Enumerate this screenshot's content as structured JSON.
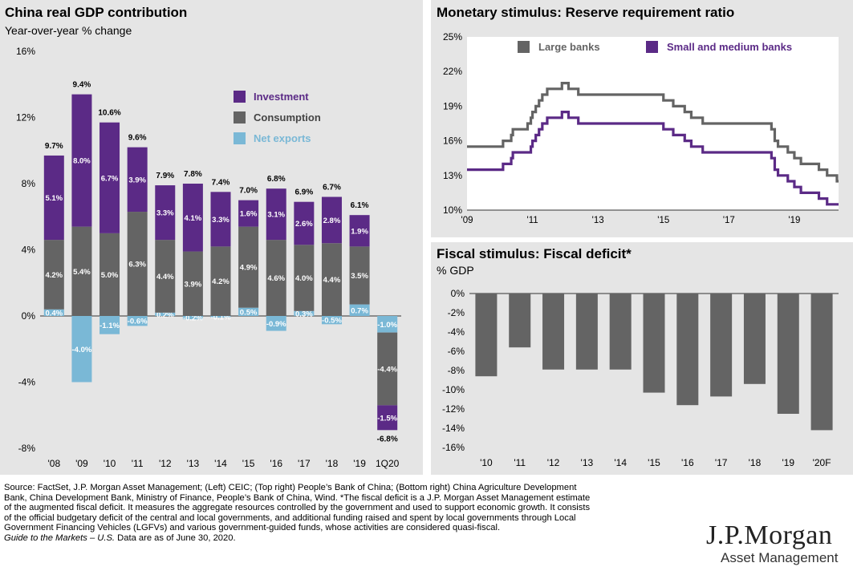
{
  "colors": {
    "investment": "#5b2a86",
    "consumption": "#646464",
    "net_exports": "#7ab8d6",
    "large_banks": "#646464",
    "small_banks": "#5b2a86",
    "deficit": "#646464",
    "panel_bg": "#e5e5e5"
  },
  "chart_data": [
    {
      "id": "gdp",
      "type": "bar",
      "stacked": true,
      "title": "China real GDP contribution",
      "subtitle": "Year-over-year % change",
      "ylim": [
        -8,
        16
      ],
      "yticks": [
        "16%",
        "12%",
        "8%",
        "4%",
        "0%",
        "-4%",
        "-8%"
      ],
      "categories": [
        "'08",
        "'09",
        "'10",
        "'11",
        "'12",
        "'13",
        "'14",
        "'15",
        "'16",
        "'17",
        "'18",
        "'19",
        "1Q20"
      ],
      "totals": [
        "9.7%",
        "9.4%",
        "10.6%",
        "9.6%",
        "7.9%",
        "7.8%",
        "7.4%",
        "7.0%",
        "6.8%",
        "6.9%",
        "6.7%",
        "6.1%",
        "-6.8%"
      ],
      "legend": [
        "Investment",
        "Consumption",
        "Net exports"
      ],
      "series": [
        {
          "name": "Net exports",
          "values": [
            0.4,
            -4.0,
            -1.1,
            -0.6,
            0.2,
            -0.2,
            -0.1,
            0.5,
            -0.9,
            0.3,
            -0.5,
            0.7,
            -1.0
          ],
          "labels": [
            "0.4%",
            "-4.0%",
            "-1.1%",
            "-0.6%",
            "0.2%",
            "-0.2%",
            "-0.1%",
            "0.5%",
            "-0.9%",
            "0.3%",
            "-0.5%",
            "0.7%",
            "-1.0%"
          ]
        },
        {
          "name": "Consumption",
          "values": [
            4.2,
            5.4,
            5.0,
            6.3,
            4.4,
            3.9,
            4.2,
            4.9,
            4.6,
            4.0,
            4.4,
            3.5,
            -4.4
          ],
          "labels": [
            "4.2%",
            "5.4%",
            "5.0%",
            "6.3%",
            "4.4%",
            "3.9%",
            "4.2%",
            "4.9%",
            "4.6%",
            "4.0%",
            "4.4%",
            "3.5%",
            "-4.4%"
          ]
        },
        {
          "name": "Investment",
          "values": [
            5.1,
            8.0,
            6.7,
            3.9,
            3.3,
            4.1,
            3.3,
            1.6,
            3.1,
            2.6,
            2.8,
            1.9,
            -1.5
          ],
          "labels": [
            "5.1%",
            "8.0%",
            "6.7%",
            "3.9%",
            "3.3%",
            "4.1%",
            "3.3%",
            "1.6%",
            "3.1%",
            "2.6%",
            "2.8%",
            "1.9%",
            "-1.5%"
          ]
        }
      ]
    },
    {
      "id": "rrr",
      "type": "line",
      "title": "Monetary stimulus: Reserve requirement ratio",
      "ylim": [
        10,
        25
      ],
      "yticks": [
        "25%",
        "22%",
        "19%",
        "16%",
        "13%",
        "10%"
      ],
      "xlim": [
        2009,
        2020.35
      ],
      "xticks": [
        {
          "v": 2009,
          "label": "'09"
        },
        {
          "v": 2011,
          "label": "'11"
        },
        {
          "v": 2013,
          "label": "'13"
        },
        {
          "v": 2015,
          "label": "'15"
        },
        {
          "v": 2017,
          "label": "'17"
        },
        {
          "v": 2019,
          "label": "'19"
        }
      ],
      "series": [
        {
          "name": "Large banks",
          "x": [
            2009.0,
            2010.0,
            2010.1,
            2010.35,
            2010.4,
            2010.85,
            2010.95,
            2011.0,
            2011.1,
            2011.2,
            2011.3,
            2011.45,
            2011.9,
            2012.1,
            2012.4,
            2015.0,
            2015.3,
            2015.65,
            2015.85,
            2016.2,
            2018.3,
            2018.4,
            2018.5,
            2018.8,
            2019.0,
            2019.2,
            2019.75,
            2020.0,
            2020.3
          ],
          "y": [
            15.5,
            15.5,
            16.0,
            16.5,
            17.0,
            17.5,
            18.0,
            18.5,
            19.0,
            19.5,
            20.0,
            20.5,
            21.0,
            20.5,
            20.0,
            19.5,
            19.0,
            18.5,
            18.0,
            17.5,
            17.0,
            16.0,
            15.5,
            15.0,
            14.5,
            14.0,
            13.5,
            13.0,
            12.5
          ]
        },
        {
          "name": "Small and medium banks",
          "x": [
            2009.0,
            2010.0,
            2010.1,
            2010.35,
            2010.4,
            2010.85,
            2010.95,
            2011.0,
            2011.1,
            2011.2,
            2011.3,
            2011.45,
            2011.9,
            2012.1,
            2012.4,
            2015.0,
            2015.3,
            2015.65,
            2015.85,
            2016.2,
            2018.3,
            2018.4,
            2018.5,
            2018.8,
            2019.0,
            2019.2,
            2019.75,
            2020.0,
            2020.3
          ],
          "y": [
            13.5,
            13.5,
            14.0,
            14.5,
            15.0,
            15.0,
            15.5,
            16.0,
            16.5,
            17.0,
            17.5,
            18.0,
            18.5,
            18.0,
            17.5,
            17.0,
            16.5,
            16.0,
            15.5,
            15.0,
            14.5,
            13.5,
            13.0,
            12.5,
            12.0,
            11.5,
            11.0,
            10.5,
            10.5
          ]
        }
      ],
      "legend": [
        "Large banks",
        "Small and medium banks"
      ],
      "legend_position": "top"
    },
    {
      "id": "deficit",
      "type": "bar",
      "title": "Fiscal stimulus: Fiscal deficit*",
      "subtitle": "% GDP",
      "ylim": [
        -16,
        0
      ],
      "yticks": [
        "0%",
        "-2%",
        "-4%",
        "-6%",
        "-8%",
        "-10%",
        "-12%",
        "-14%",
        "-16%"
      ],
      "categories": [
        "'10",
        "'11",
        "'12",
        "'13",
        "'14",
        "'15",
        "'16",
        "'17",
        "'18",
        "'19",
        "'20F"
      ],
      "values": [
        -8.6,
        -5.6,
        -7.9,
        -7.9,
        -7.9,
        -10.3,
        -11.6,
        -10.7,
        -9.4,
        -12.5,
        -14.2
      ]
    }
  ],
  "footnote": {
    "source": "Source: FactSet, J.P. Morgan Asset Management; (Left) CEIC; (Top right) People’s Bank of China; (Bottom right) China Agriculture Development\nBank, China Development Bank, Ministry of Finance, People’s Bank of China, Wind. *The fiscal deficit is a J.P. Morgan Asset Management estimate\nof the augmented fiscal deficit. It measures the aggregate resources controlled by the government and used to support economic growth. It consists\nof the official budgetary deficit of the central and local governments, and additional funding raised and spent by local governments through Local\nGovernment Financing Vehicles (LGFVs) and various government-guided funds, whose activities are considered quasi-fiscal.",
    "guide": "Guide to the Markets – U.S.",
    "date_note": " Data are as of June 30, 2020."
  },
  "logo": {
    "name": "J.P.Morgan",
    "sub": "Asset Management"
  }
}
